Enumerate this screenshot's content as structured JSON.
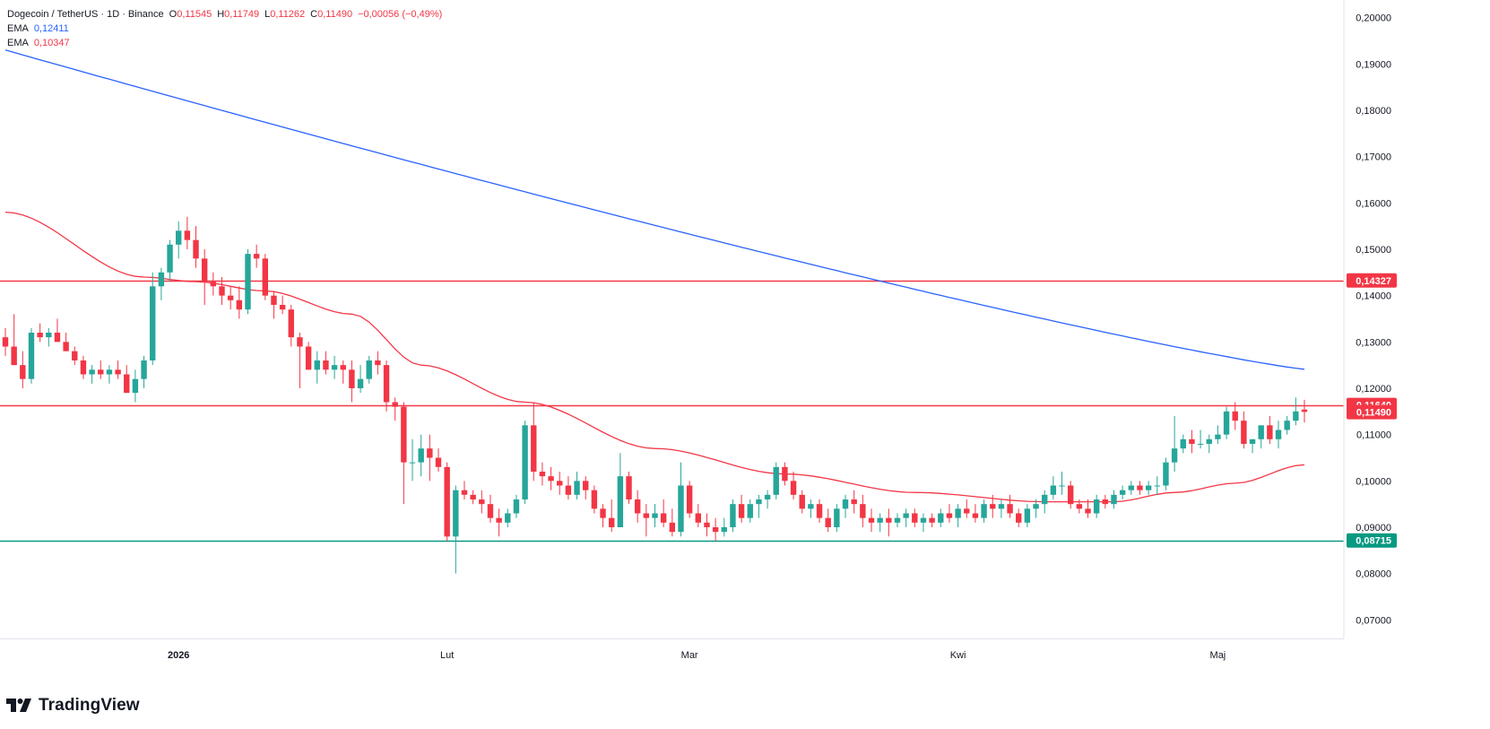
{
  "header": {
    "symbol": "Dogecoin / TetherUS · 1D · Binance",
    "ohlc": [
      {
        "label": "O",
        "value": "0,11545"
      },
      {
        "label": "H",
        "value": "0,11749"
      },
      {
        "label": "L",
        "value": "0,11262"
      },
      {
        "label": "C",
        "value": "0,11490"
      }
    ],
    "change": "−0,00056 (−0,49%)",
    "ema_rows": [
      {
        "label": "EMA",
        "value": "0,12411",
        "color": "#2962ff"
      },
      {
        "label": "EMA",
        "value": "0,10347",
        "color": "#f23645"
      }
    ]
  },
  "brand": {
    "name": "TradingView",
    "logo_icon": "tradingview-logo-icon"
  },
  "colors": {
    "up": "#26a69a",
    "down": "#f23645",
    "ema_long": "#2962ff",
    "ema_short": "#f23645",
    "support": "#089981"
  },
  "chart_data": {
    "type": "candlestick",
    "x_labels": [
      {
        "label": "2026",
        "day": 20
      },
      {
        "label": "Lut",
        "day": 51
      },
      {
        "label": "Mar",
        "day": 79
      },
      {
        "label": "Kwi",
        "day": 110
      },
      {
        "label": "Maj",
        "day": 140
      }
    ],
    "y_ticks": [
      "0,20000",
      "0,19000",
      "0,18000",
      "0,17000",
      "0,16000",
      "0,15000",
      "0,14000",
      "0,13000",
      "0,12000",
      "0,11000",
      "0,10000",
      "0,09000",
      "0,08000",
      "0,07000"
    ],
    "ylim": [
      0.066,
      0.2038
    ],
    "price_lines": [
      {
        "value": 0.14327,
        "label": "0,14327",
        "color": "#f23645"
      },
      {
        "value": 0.1164,
        "label": "0,11640",
        "color": "#f23645"
      },
      {
        "value": 0.08715,
        "label": "0,08715",
        "color": "#089981"
      }
    ],
    "last_price": {
      "value": 0.1149,
      "label": "0,11490",
      "color": "#f23645"
    },
    "candles": [
      [
        0.131,
        0.133,
        0.127,
        0.129
      ],
      [
        0.129,
        0.136,
        0.125,
        0.125
      ],
      [
        0.125,
        0.128,
        0.12,
        0.122
      ],
      [
        0.122,
        0.133,
        0.121,
        0.132
      ],
      [
        0.132,
        0.134,
        0.13,
        0.131
      ],
      [
        0.131,
        0.133,
        0.129,
        0.132
      ],
      [
        0.132,
        0.135,
        0.13,
        0.13
      ],
      [
        0.13,
        0.132,
        0.128,
        0.128
      ],
      [
        0.128,
        0.129,
        0.125,
        0.126
      ],
      [
        0.126,
        0.127,
        0.122,
        0.123
      ],
      [
        0.123,
        0.125,
        0.121,
        0.124
      ],
      [
        0.124,
        0.126,
        0.122,
        0.123
      ],
      [
        0.123,
        0.125,
        0.121,
        0.124
      ],
      [
        0.124,
        0.126,
        0.122,
        0.123
      ],
      [
        0.123,
        0.125,
        0.119,
        0.119
      ],
      [
        0.119,
        0.124,
        0.117,
        0.122
      ],
      [
        0.122,
        0.127,
        0.12,
        0.126
      ],
      [
        0.126,
        0.145,
        0.125,
        0.142
      ],
      [
        0.142,
        0.146,
        0.139,
        0.145
      ],
      [
        0.145,
        0.152,
        0.143,
        0.151
      ],
      [
        0.151,
        0.156,
        0.148,
        0.154
      ],
      [
        0.154,
        0.157,
        0.15,
        0.152
      ],
      [
        0.152,
        0.155,
        0.146,
        0.148
      ],
      [
        0.148,
        0.15,
        0.138,
        0.143
      ],
      [
        0.143,
        0.145,
        0.14,
        0.142
      ],
      [
        0.142,
        0.144,
        0.138,
        0.14
      ],
      [
        0.14,
        0.142,
        0.137,
        0.139
      ],
      [
        0.139,
        0.142,
        0.135,
        0.137
      ],
      [
        0.137,
        0.15,
        0.136,
        0.149
      ],
      [
        0.149,
        0.151,
        0.146,
        0.148
      ],
      [
        0.148,
        0.149,
        0.139,
        0.14
      ],
      [
        0.14,
        0.141,
        0.135,
        0.138
      ],
      [
        0.138,
        0.14,
        0.136,
        0.137
      ],
      [
        0.137,
        0.138,
        0.129,
        0.131
      ],
      [
        0.131,
        0.132,
        0.12,
        0.129
      ],
      [
        0.129,
        0.13,
        0.124,
        0.124
      ],
      [
        0.124,
        0.128,
        0.121,
        0.126
      ],
      [
        0.126,
        0.128,
        0.123,
        0.124
      ],
      [
        0.124,
        0.127,
        0.122,
        0.125
      ],
      [
        0.125,
        0.126,
        0.121,
        0.124
      ],
      [
        0.124,
        0.126,
        0.117,
        0.12
      ],
      [
        0.12,
        0.125,
        0.119,
        0.122
      ],
      [
        0.122,
        0.127,
        0.121,
        0.126
      ],
      [
        0.126,
        0.128,
        0.123,
        0.125
      ],
      [
        0.125,
        0.126,
        0.115,
        0.117
      ],
      [
        0.117,
        0.118,
        0.113,
        0.116
      ],
      [
        0.116,
        0.117,
        0.095,
        0.104
      ],
      [
        0.104,
        0.109,
        0.1,
        0.104
      ],
      [
        0.104,
        0.11,
        0.101,
        0.107
      ],
      [
        0.107,
        0.11,
        0.1,
        0.105
      ],
      [
        0.105,
        0.107,
        0.102,
        0.103
      ],
      [
        0.103,
        0.104,
        0.087,
        0.088
      ],
      [
        0.088,
        0.099,
        0.08,
        0.098
      ],
      [
        0.098,
        0.1,
        0.096,
        0.097
      ],
      [
        0.097,
        0.098,
        0.095,
        0.096
      ],
      [
        0.096,
        0.098,
        0.093,
        0.095
      ],
      [
        0.095,
        0.097,
        0.091,
        0.092
      ],
      [
        0.092,
        0.094,
        0.088,
        0.091
      ],
      [
        0.091,
        0.094,
        0.09,
        0.093
      ],
      [
        0.093,
        0.097,
        0.092,
        0.096
      ],
      [
        0.096,
        0.113,
        0.095,
        0.112
      ],
      [
        0.112,
        0.117,
        0.1,
        0.102
      ],
      [
        0.102,
        0.104,
        0.099,
        0.101
      ],
      [
        0.101,
        0.103,
        0.098,
        0.1
      ],
      [
        0.1,
        0.102,
        0.097,
        0.099
      ],
      [
        0.099,
        0.101,
        0.096,
        0.097
      ],
      [
        0.097,
        0.102,
        0.096,
        0.1
      ],
      [
        0.1,
        0.101,
        0.096,
        0.098
      ],
      [
        0.098,
        0.099,
        0.093,
        0.094
      ],
      [
        0.094,
        0.095,
        0.09,
        0.092
      ],
      [
        0.092,
        0.096,
        0.089,
        0.09
      ],
      [
        0.09,
        0.106,
        0.09,
        0.101
      ],
      [
        0.101,
        0.102,
        0.095,
        0.096
      ],
      [
        0.096,
        0.098,
        0.091,
        0.093
      ],
      [
        0.093,
        0.095,
        0.088,
        0.092
      ],
      [
        0.092,
        0.095,
        0.09,
        0.093
      ],
      [
        0.093,
        0.096,
        0.09,
        0.091
      ],
      [
        0.091,
        0.094,
        0.088,
        0.089
      ],
      [
        0.089,
        0.104,
        0.088,
        0.099
      ],
      [
        0.099,
        0.1,
        0.092,
        0.093
      ],
      [
        0.093,
        0.095,
        0.09,
        0.091
      ],
      [
        0.091,
        0.093,
        0.088,
        0.09
      ],
      [
        0.09,
        0.092,
        0.087,
        0.089
      ],
      [
        0.089,
        0.092,
        0.088,
        0.09
      ],
      [
        0.09,
        0.096,
        0.089,
        0.095
      ],
      [
        0.095,
        0.097,
        0.091,
        0.092
      ],
      [
        0.092,
        0.096,
        0.091,
        0.095
      ],
      [
        0.095,
        0.097,
        0.092,
        0.096
      ],
      [
        0.096,
        0.098,
        0.094,
        0.097
      ],
      [
        0.097,
        0.104,
        0.096,
        0.103
      ],
      [
        0.103,
        0.104,
        0.099,
        0.1
      ],
      [
        0.1,
        0.102,
        0.096,
        0.097
      ],
      [
        0.097,
        0.098,
        0.093,
        0.094
      ],
      [
        0.094,
        0.096,
        0.092,
        0.095
      ],
      [
        0.095,
        0.096,
        0.091,
        0.092
      ],
      [
        0.092,
        0.094,
        0.089,
        0.09
      ],
      [
        0.09,
        0.095,
        0.089,
        0.094
      ],
      [
        0.094,
        0.097,
        0.092,
        0.096
      ],
      [
        0.096,
        0.098,
        0.093,
        0.095
      ],
      [
        0.095,
        0.097,
        0.09,
        0.092
      ],
      [
        0.092,
        0.094,
        0.089,
        0.091
      ],
      [
        0.091,
        0.093,
        0.089,
        0.092
      ],
      [
        0.092,
        0.094,
        0.088,
        0.091
      ],
      [
        0.091,
        0.093,
        0.09,
        0.092
      ],
      [
        0.092,
        0.094,
        0.09,
        0.093
      ],
      [
        0.093,
        0.094,
        0.09,
        0.091
      ],
      [
        0.091,
        0.093,
        0.089,
        0.092
      ],
      [
        0.092,
        0.093,
        0.09,
        0.091
      ],
      [
        0.091,
        0.094,
        0.09,
        0.093
      ],
      [
        0.093,
        0.095,
        0.091,
        0.092
      ],
      [
        0.092,
        0.095,
        0.09,
        0.094
      ],
      [
        0.094,
        0.096,
        0.092,
        0.093
      ],
      [
        0.093,
        0.095,
        0.091,
        0.092
      ],
      [
        0.092,
        0.096,
        0.091,
        0.095
      ],
      [
        0.095,
        0.097,
        0.092,
        0.094
      ],
      [
        0.094,
        0.096,
        0.092,
        0.095
      ],
      [
        0.095,
        0.097,
        0.092,
        0.093
      ],
      [
        0.093,
        0.094,
        0.09,
        0.091
      ],
      [
        0.091,
        0.095,
        0.09,
        0.094
      ],
      [
        0.094,
        0.096,
        0.092,
        0.095
      ],
      [
        0.095,
        0.098,
        0.093,
        0.097
      ],
      [
        0.097,
        0.101,
        0.096,
        0.099
      ],
      [
        0.099,
        0.102,
        0.097,
        0.099
      ],
      [
        0.099,
        0.1,
        0.094,
        0.095
      ],
      [
        0.095,
        0.096,
        0.093,
        0.094
      ],
      [
        0.094,
        0.096,
        0.092,
        0.093
      ],
      [
        0.093,
        0.097,
        0.092,
        0.096
      ],
      [
        0.096,
        0.097,
        0.094,
        0.095
      ],
      [
        0.095,
        0.098,
        0.094,
        0.097
      ],
      [
        0.097,
        0.099,
        0.096,
        0.098
      ],
      [
        0.098,
        0.1,
        0.097,
        0.099
      ],
      [
        0.099,
        0.1,
        0.097,
        0.098
      ],
      [
        0.098,
        0.1,
        0.097,
        0.099
      ],
      [
        0.099,
        0.101,
        0.097,
        0.099
      ],
      [
        0.099,
        0.105,
        0.098,
        0.104
      ],
      [
        0.104,
        0.114,
        0.102,
        0.107
      ],
      [
        0.107,
        0.11,
        0.106,
        0.109
      ],
      [
        0.109,
        0.111,
        0.106,
        0.108
      ],
      [
        0.108,
        0.111,
        0.107,
        0.108
      ],
      [
        0.108,
        0.11,
        0.106,
        0.109
      ],
      [
        0.109,
        0.112,
        0.108,
        0.11
      ],
      [
        0.11,
        0.116,
        0.109,
        0.115
      ],
      [
        0.115,
        0.117,
        0.111,
        0.113
      ],
      [
        0.113,
        0.115,
        0.107,
        0.108
      ],
      [
        0.108,
        0.109,
        0.106,
        0.109
      ],
      [
        0.109,
        0.112,
        0.107,
        0.112
      ],
      [
        0.112,
        0.114,
        0.108,
        0.109
      ],
      [
        0.109,
        0.113,
        0.107,
        0.111
      ],
      [
        0.111,
        0.114,
        0.11,
        0.113
      ],
      [
        0.113,
        0.118,
        0.112,
        0.115
      ],
      [
        0.1154,
        0.1175,
        0.1126,
        0.1149
      ]
    ],
    "ema_long": {
      "label": "EMA",
      "value": 0.12411,
      "start": 0.193,
      "color": "#2962ff"
    },
    "ema_short": {
      "label": "EMA",
      "value": 0.10347,
      "start": 0.158,
      "color": "#f23645"
    }
  }
}
